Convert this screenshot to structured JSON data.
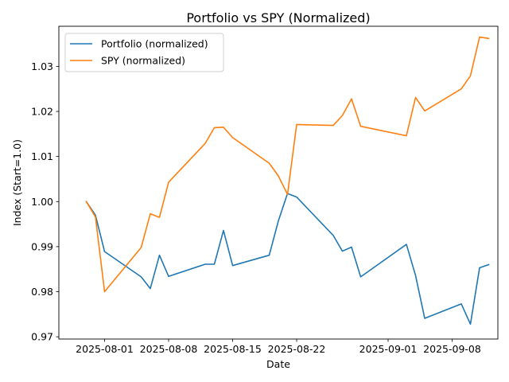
{
  "chart_data": {
    "type": "line",
    "title": "Portfolio vs SPY (Normalized)",
    "xlabel": "Date",
    "ylabel": "Index (Start=1.0)",
    "ylim": [
      0.9695,
      1.0389
    ],
    "xlim": [
      "2025-07-27",
      "2025-09-13"
    ],
    "yticks": [
      0.97,
      0.98,
      0.99,
      1.0,
      1.01,
      1.02,
      1.03
    ],
    "ytick_labels": [
      "0.97",
      "0.98",
      "0.99",
      "1.00",
      "1.01",
      "1.02",
      "1.03"
    ],
    "xticks": [
      "2025-08-01",
      "2025-08-08",
      "2025-08-15",
      "2025-08-22",
      "2025-09-01",
      "2025-09-08"
    ],
    "xtick_labels": [
      "2025-08-01",
      "2025-08-08",
      "2025-08-15",
      "2025-08-22",
      "2025-09-01",
      "2025-09-08"
    ],
    "legend": "top-left",
    "grid": false,
    "series": [
      {
        "name": "Portfolio (normalized)",
        "color": "#1f77b4",
        "points": [
          [
            "2025-07-30",
            1.0
          ],
          [
            "2025-07-31",
            0.997
          ],
          [
            "2025-08-01",
            0.9889
          ],
          [
            "2025-08-05",
            0.9833
          ],
          [
            "2025-08-06",
            0.9807
          ],
          [
            "2025-08-07",
            0.9881
          ],
          [
            "2025-08-08",
            0.9834
          ],
          [
            "2025-08-12",
            0.9861
          ],
          [
            "2025-08-13",
            0.9861
          ],
          [
            "2025-08-14",
            0.9936
          ],
          [
            "2025-08-15",
            0.9858
          ],
          [
            "2025-08-19",
            0.9881
          ],
          [
            "2025-08-20",
            0.9957
          ],
          [
            "2025-08-21",
            1.0018
          ],
          [
            "2025-08-22",
            1.001
          ],
          [
            "2025-08-26",
            0.9925
          ],
          [
            "2025-08-27",
            0.989
          ],
          [
            "2025-08-28",
            0.9899
          ],
          [
            "2025-08-29",
            0.9833
          ],
          [
            "2025-09-03",
            0.9905
          ],
          [
            "2025-09-04",
            0.9836
          ],
          [
            "2025-09-05",
            0.9741
          ],
          [
            "2025-09-09",
            0.9773
          ],
          [
            "2025-09-10",
            0.9728
          ],
          [
            "2025-09-11",
            0.9853
          ],
          [
            "2025-09-12",
            0.986
          ]
        ]
      },
      {
        "name": "SPY (normalized)",
        "color": "#ff7f0e",
        "points": [
          [
            "2025-07-30",
            1.0
          ],
          [
            "2025-07-31",
            0.9966
          ],
          [
            "2025-08-01",
            0.98
          ],
          [
            "2025-08-05",
            0.9898
          ],
          [
            "2025-08-06",
            0.9973
          ],
          [
            "2025-08-07",
            0.9965
          ],
          [
            "2025-08-08",
            1.0043
          ],
          [
            "2025-08-12",
            1.0129
          ],
          [
            "2025-08-13",
            1.0164
          ],
          [
            "2025-08-14",
            1.0165
          ],
          [
            "2025-08-15",
            1.0142
          ],
          [
            "2025-08-19",
            1.0085
          ],
          [
            "2025-08-20",
            1.0057
          ],
          [
            "2025-08-21",
            1.0016
          ],
          [
            "2025-08-22",
            1.0171
          ],
          [
            "2025-08-26",
            1.0169
          ],
          [
            "2025-08-27",
            1.0191
          ],
          [
            "2025-08-28",
            1.0228
          ],
          [
            "2025-08-29",
            1.0167
          ],
          [
            "2025-09-03",
            1.0146
          ],
          [
            "2025-09-04",
            1.0231
          ],
          [
            "2025-09-05",
            1.0201
          ],
          [
            "2025-09-09",
            1.025
          ],
          [
            "2025-09-10",
            1.0279
          ],
          [
            "2025-09-11",
            1.0365
          ],
          [
            "2025-09-12",
            1.0362
          ]
        ]
      }
    ]
  }
}
